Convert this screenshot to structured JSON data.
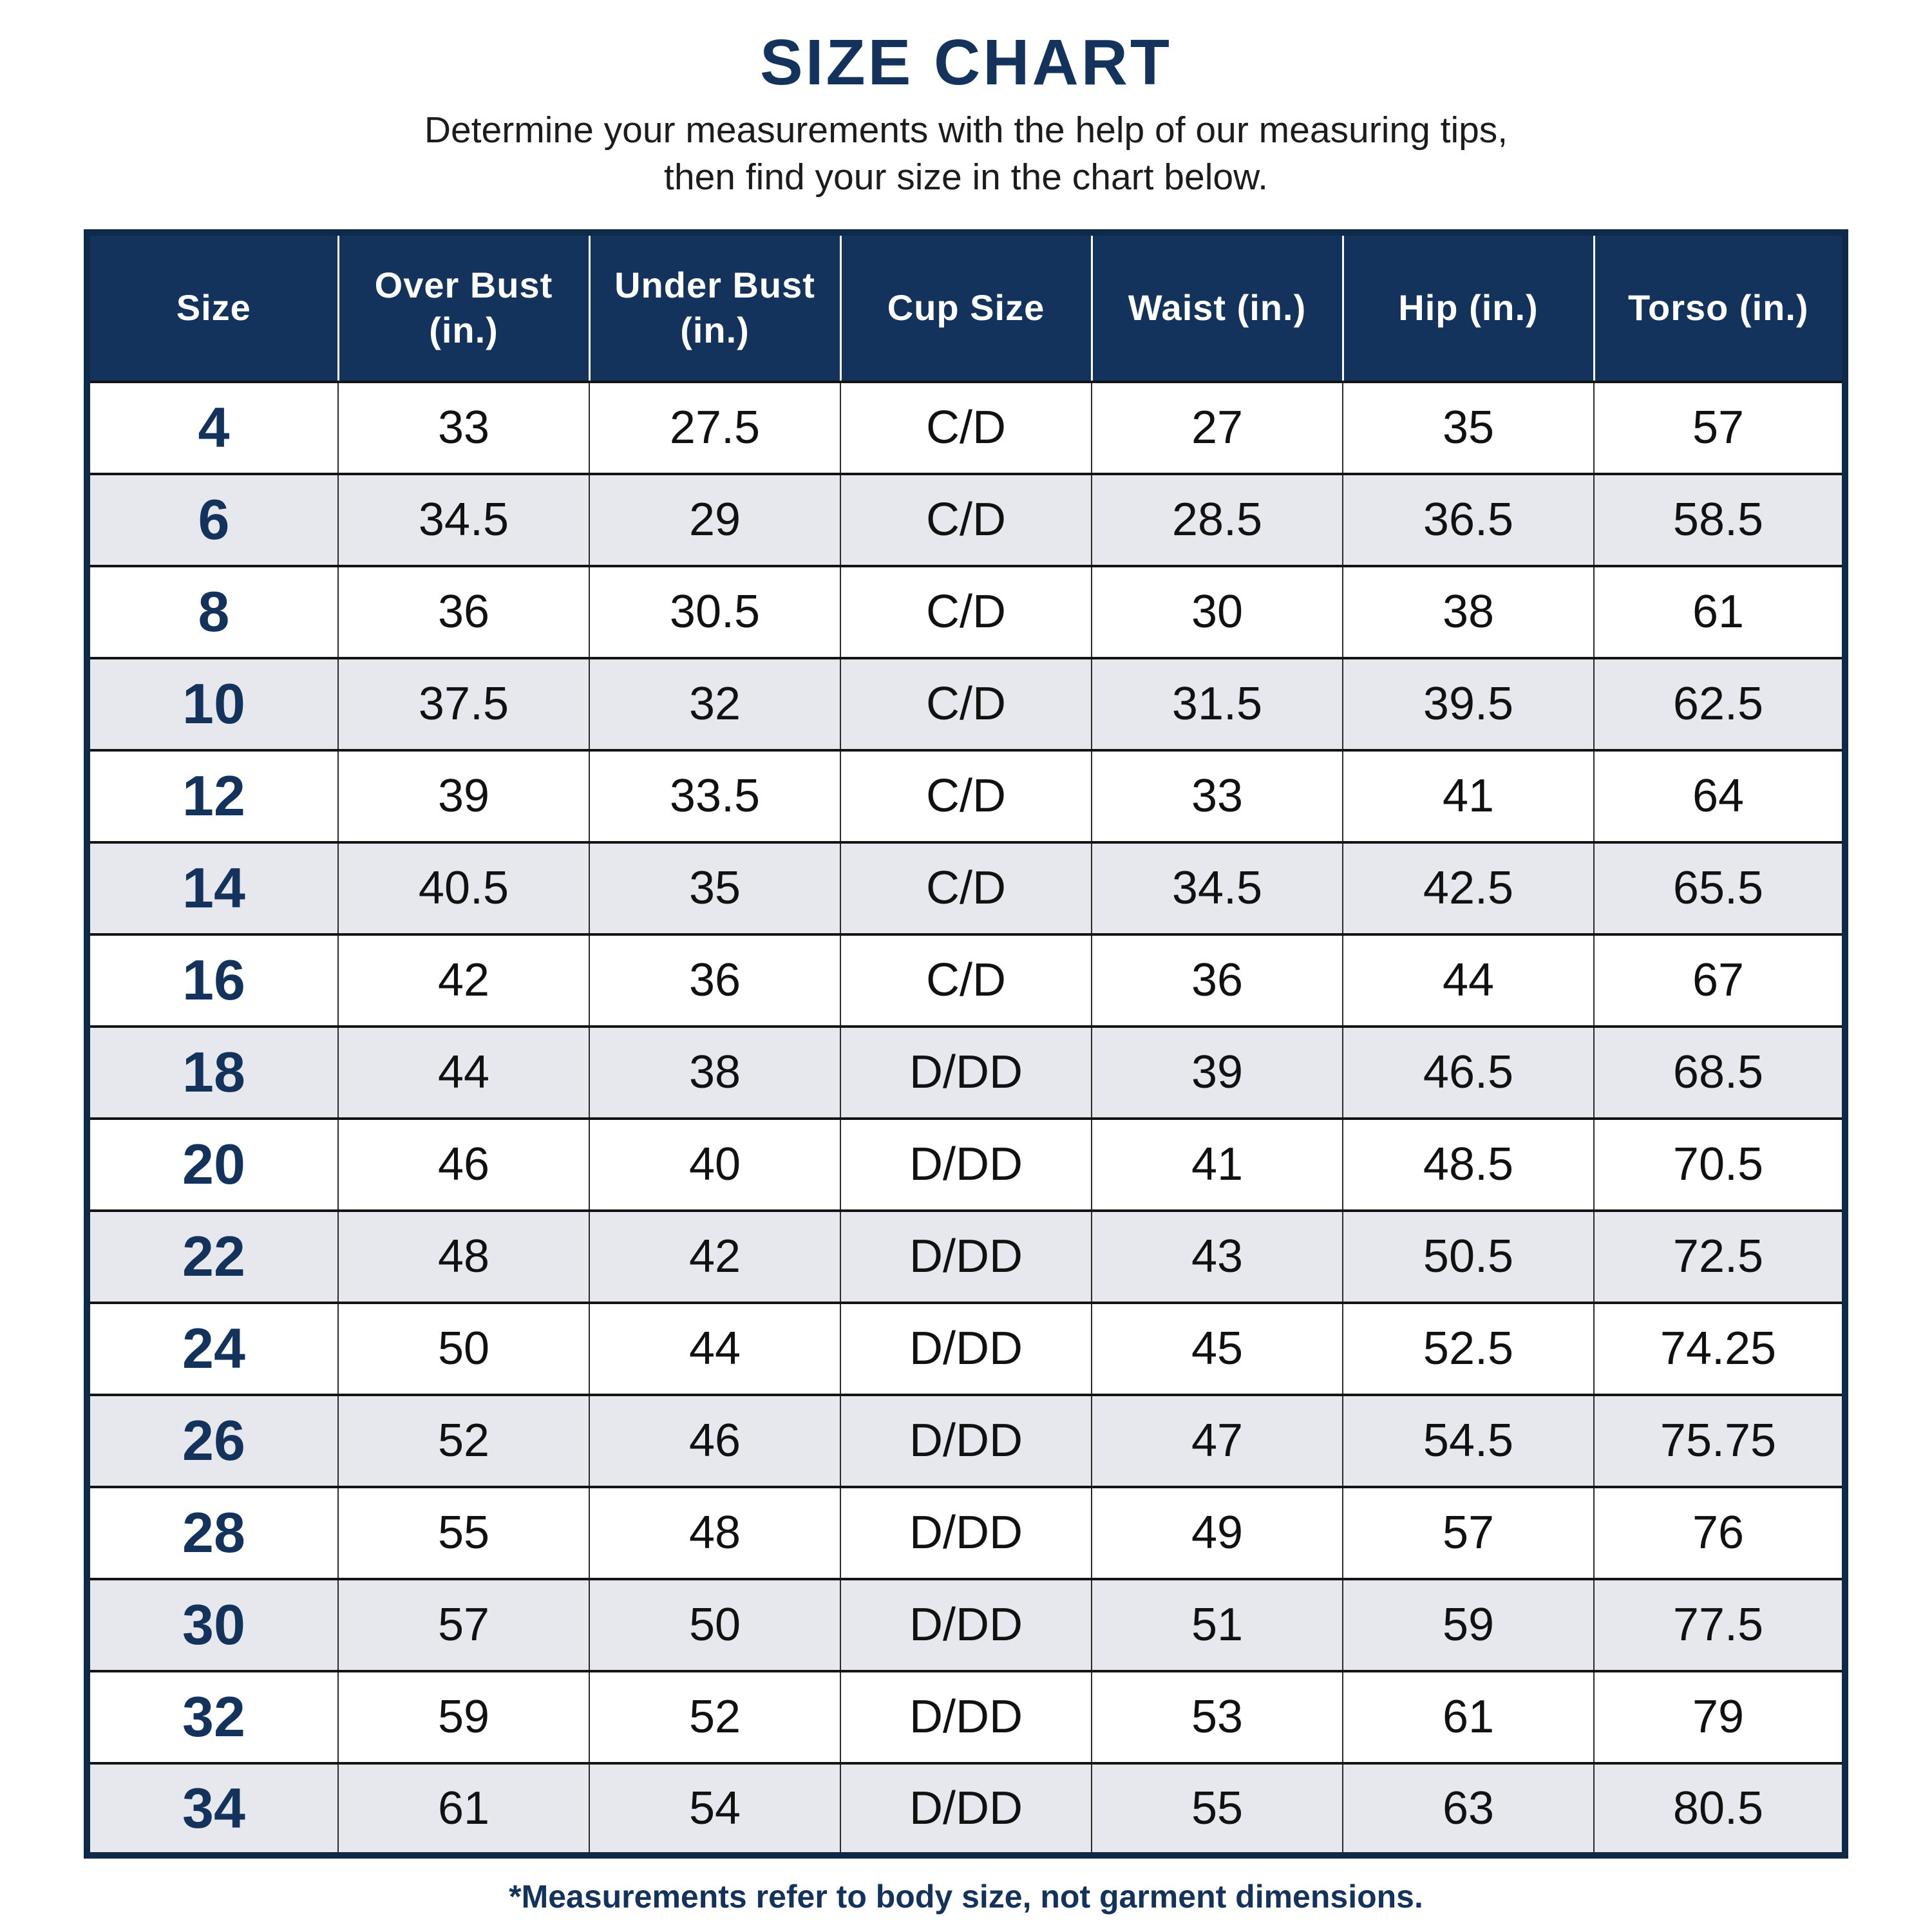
{
  "page": {
    "title": "SIZE CHART",
    "subtitle_line1": "Determine your measurements with the help of our measuring tips,",
    "subtitle_line2": "then find your size in the chart below.",
    "footnote": "*Measurements refer to body size, not garment dimensions."
  },
  "colors": {
    "navy": "#14335c",
    "border_navy": "#0f2948",
    "row_alt": "#e6e8ed",
    "text_dark": "#1c1c1c"
  },
  "table": {
    "headers": [
      "Size",
      "Over Bust\n(in.)",
      "Under Bust\n(in.)",
      "Cup Size",
      "Waist (in.)",
      "Hip (in.)",
      "Torso (in.)"
    ],
    "rows": [
      [
        "4",
        "33",
        "27.5",
        "C/D",
        "27",
        "35",
        "57"
      ],
      [
        "6",
        "34.5",
        "29",
        "C/D",
        "28.5",
        "36.5",
        "58.5"
      ],
      [
        "8",
        "36",
        "30.5",
        "C/D",
        "30",
        "38",
        "61"
      ],
      [
        "10",
        "37.5",
        "32",
        "C/D",
        "31.5",
        "39.5",
        "62.5"
      ],
      [
        "12",
        "39",
        "33.5",
        "C/D",
        "33",
        "41",
        "64"
      ],
      [
        "14",
        "40.5",
        "35",
        "C/D",
        "34.5",
        "42.5",
        "65.5"
      ],
      [
        "16",
        "42",
        "36",
        "C/D",
        "36",
        "44",
        "67"
      ],
      [
        "18",
        "44",
        "38",
        "D/DD",
        "39",
        "46.5",
        "68.5"
      ],
      [
        "20",
        "46",
        "40",
        "D/DD",
        "41",
        "48.5",
        "70.5"
      ],
      [
        "22",
        "48",
        "42",
        "D/DD",
        "43",
        "50.5",
        "72.5"
      ],
      [
        "24",
        "50",
        "44",
        "D/DD",
        "45",
        "52.5",
        "74.25"
      ],
      [
        "26",
        "52",
        "46",
        "D/DD",
        "47",
        "54.5",
        "75.75"
      ],
      [
        "28",
        "55",
        "48",
        "D/DD",
        "49",
        "57",
        "76"
      ],
      [
        "30",
        "57",
        "50",
        "D/DD",
        "51",
        "59",
        "77.5"
      ],
      [
        "32",
        "59",
        "52",
        "D/DD",
        "53",
        "61",
        "79"
      ],
      [
        "34",
        "61",
        "54",
        "D/DD",
        "55",
        "63",
        "80.5"
      ]
    ]
  }
}
